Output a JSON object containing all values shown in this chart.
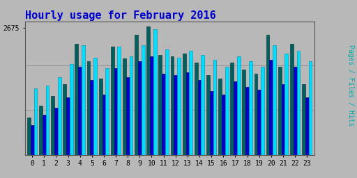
{
  "title": "Hourly usage for February 2016",
  "title_color": "#0000cc",
  "title_fontsize": 11,
  "hours": [
    0,
    1,
    2,
    3,
    4,
    5,
    6,
    7,
    8,
    9,
    10,
    11,
    12,
    13,
    14,
    15,
    16,
    17,
    18,
    19,
    20,
    21,
    22,
    23
  ],
  "pages": [
    280,
    370,
    440,
    530,
    830,
    700,
    570,
    810,
    720,
    900,
    960,
    750,
    740,
    760,
    690,
    600,
    570,
    690,
    640,
    610,
    900,
    660,
    830,
    530
  ],
  "files": [
    220,
    300,
    355,
    430,
    660,
    560,
    450,
    650,
    580,
    700,
    740,
    610,
    600,
    620,
    560,
    480,
    450,
    550,
    510,
    490,
    710,
    530,
    660,
    430
  ],
  "hits": [
    500,
    520,
    580,
    680,
    820,
    730,
    650,
    810,
    740,
    820,
    940,
    790,
    730,
    780,
    750,
    710,
    660,
    740,
    700,
    660,
    820,
    760,
    780,
    700
  ],
  "pages_color": "#006060",
  "files_color": "#0000cc",
  "hits_color": "#00ddff",
  "bar_width": 0.28,
  "ylim": [
    0,
    1000
  ],
  "ytick_val": 950,
  "ytick_label": "2675",
  "background_color": "#b8b8b8",
  "plot_bg_color": "#b8b8b8",
  "grid_color": "#999999",
  "ylabel": "Pages / Files / Hits",
  "ylabel_color": "#00aaaa"
}
